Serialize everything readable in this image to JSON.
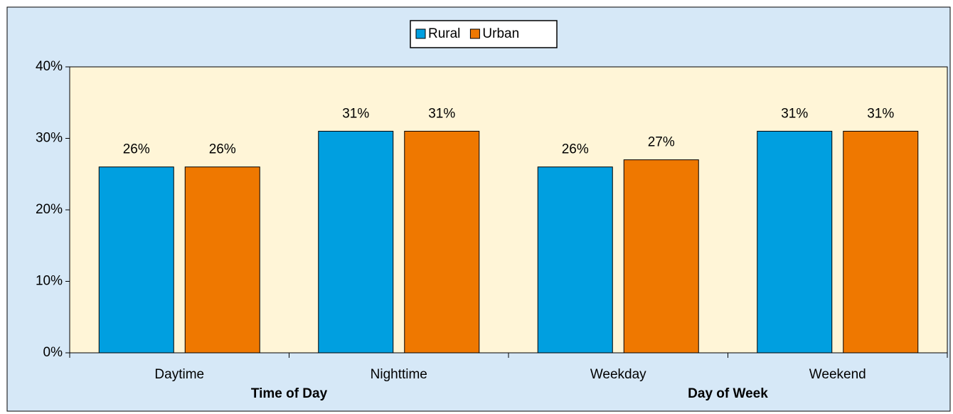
{
  "chart_data": {
    "type": "bar",
    "categories": [
      "Daytime",
      "Nighttime",
      "Weekday",
      "Weekend"
    ],
    "group_labels": [
      "Time of Day",
      "Day of Week"
    ],
    "series": [
      {
        "name": "Rural",
        "color": "#009fe0",
        "values": [
          26,
          31,
          26,
          31
        ],
        "value_labels": [
          "26%",
          "31%",
          "26%",
          "31%"
        ]
      },
      {
        "name": "Urban",
        "color": "#ef7800",
        "values": [
          26,
          31,
          27,
          31
        ],
        "value_labels": [
          "26%",
          "31%",
          "27%",
          "31%"
        ]
      }
    ],
    "ylim": [
      0,
      40
    ],
    "yticks": [
      {
        "value": 0,
        "label": "0%"
      },
      {
        "value": 10,
        "label": "10%"
      },
      {
        "value": 20,
        "label": "20%"
      },
      {
        "value": 30,
        "label": "30%"
      },
      {
        "value": 40,
        "label": "40%"
      }
    ],
    "legend": "top"
  }
}
